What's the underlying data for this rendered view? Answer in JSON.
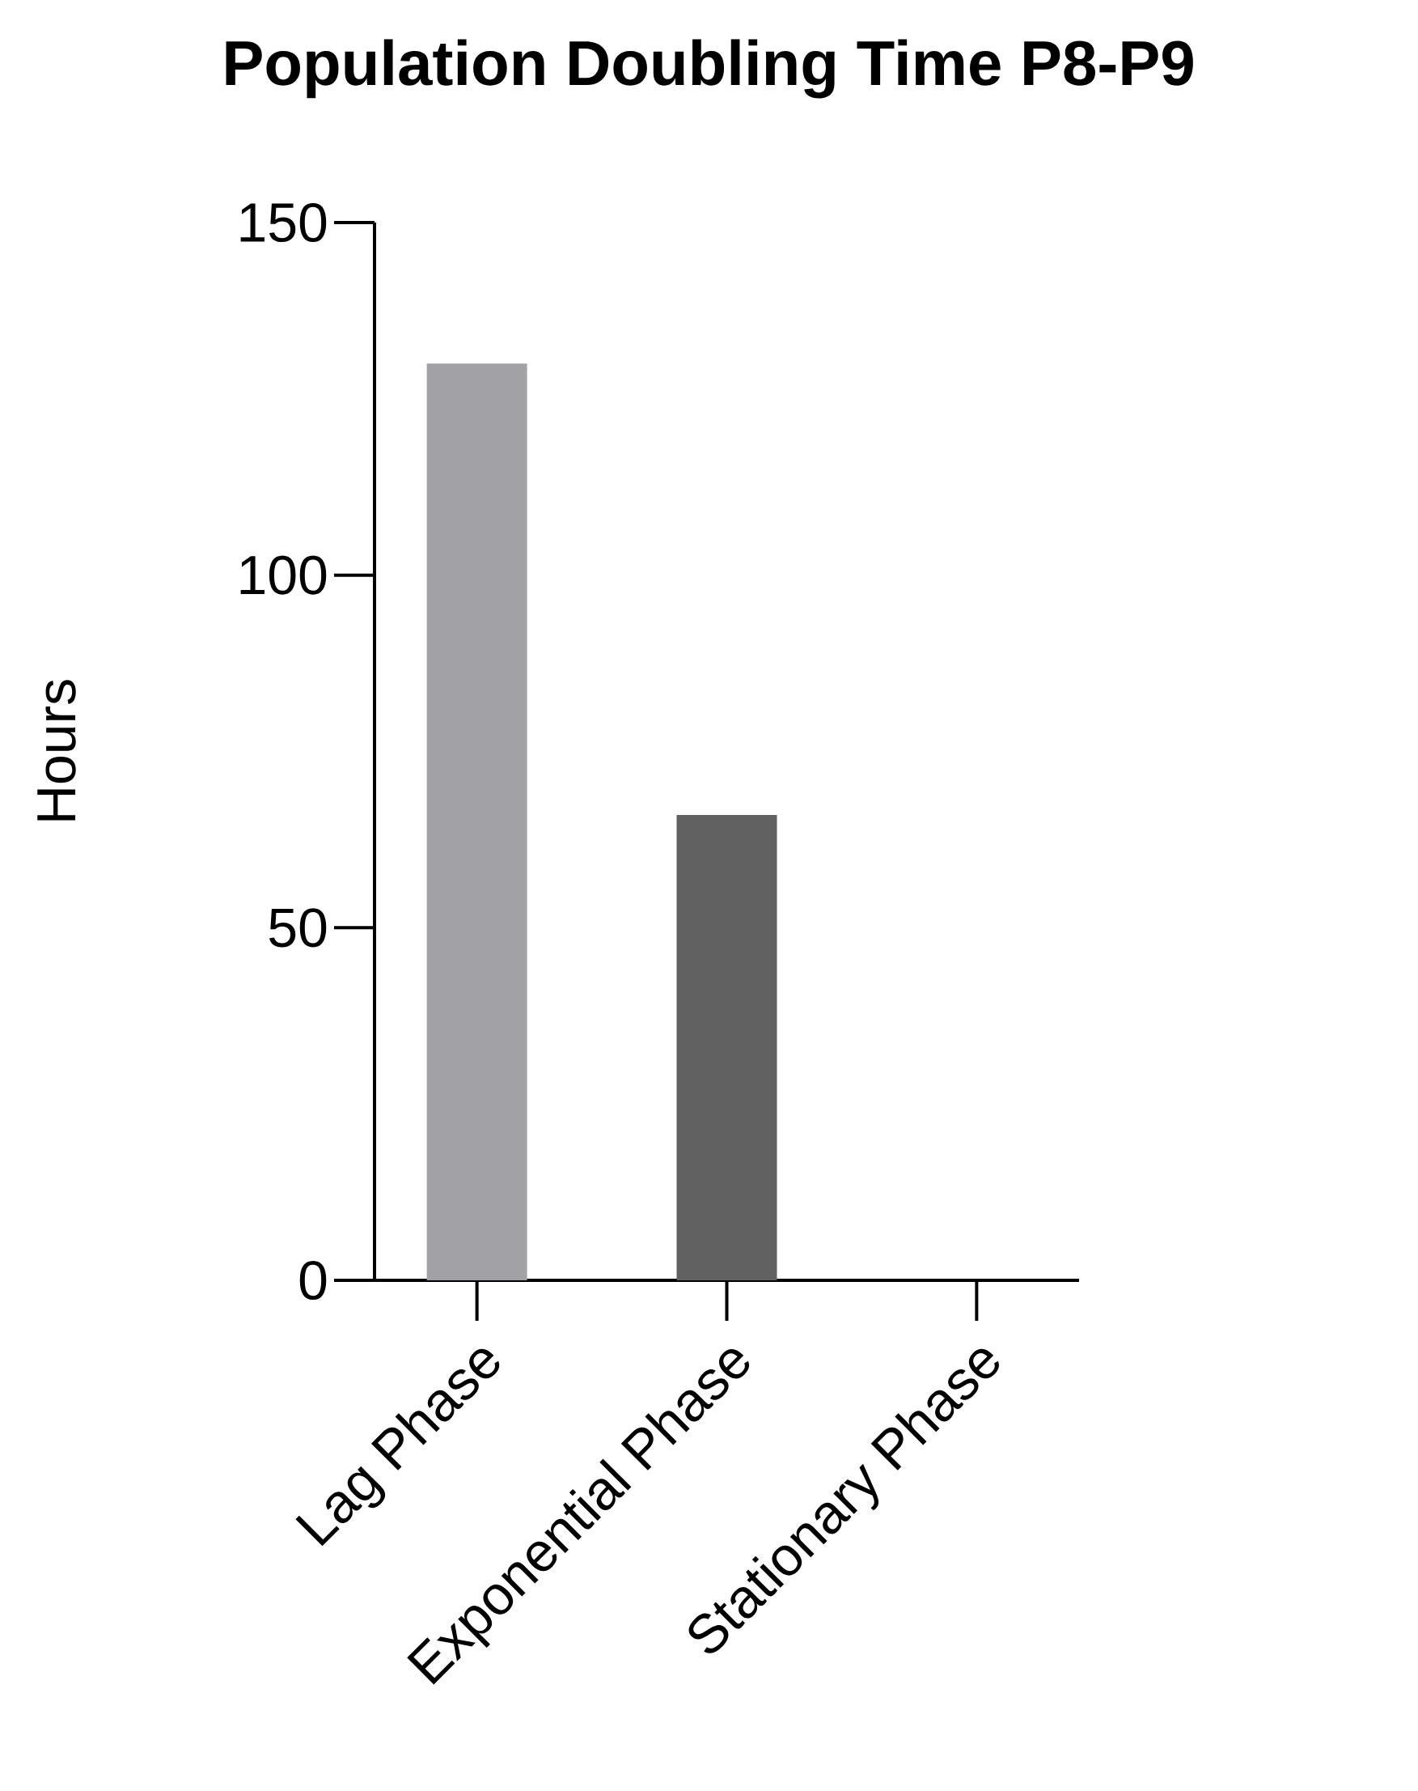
{
  "chart_data": {
    "type": "bar",
    "title": "Population Doubling Time P8-P9",
    "ylabel": "Hours",
    "categories": [
      "Lag Phase",
      "Exponential Phase",
      "Stationary Phase"
    ],
    "values": [
      130,
      66,
      null
    ],
    "colors": [
      "#a2a1a6",
      "#616161",
      null
    ],
    "ylim": [
      0,
      150
    ],
    "yticks": [
      0,
      50,
      100,
      150
    ],
    "grid": false,
    "legend": false
  }
}
